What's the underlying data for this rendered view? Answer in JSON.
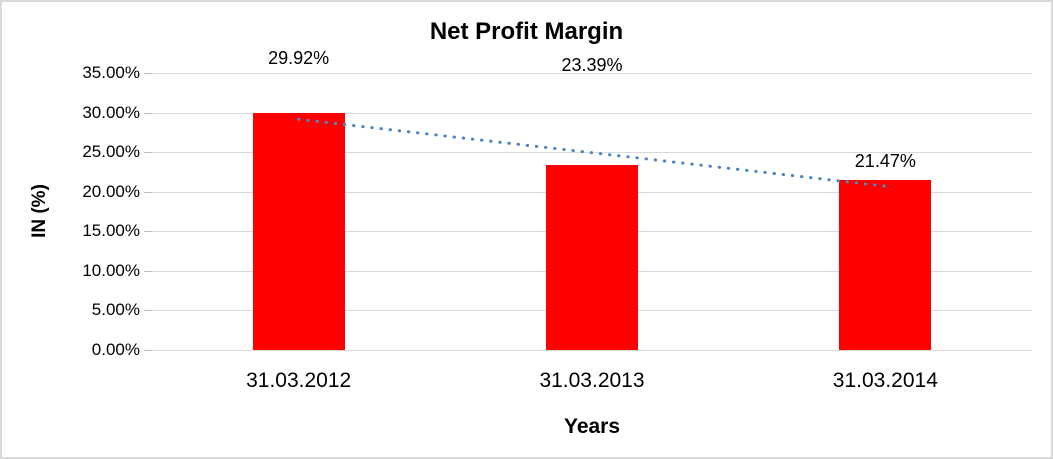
{
  "chart_data": {
    "type": "bar",
    "title": "Net Profit Margin",
    "xlabel": "Years",
    "ylabel": "IN (%)",
    "categories": [
      "31.03.2012",
      "31.03.2013",
      "31.03.2014"
    ],
    "values": [
      29.92,
      23.39,
      21.47
    ],
    "data_labels": [
      "29.92%",
      "23.39%",
      "21.47%"
    ],
    "y_ticks": [
      "35.00%",
      "30.00%",
      "25.00%",
      "20.00%",
      "15.00%",
      "10.00%",
      "5.00%",
      "0.00%"
    ],
    "ylim": [
      0,
      35
    ],
    "y_tick_step": 5,
    "grid": true,
    "legend": "none",
    "bar_color": "#ff0000",
    "trendline": {
      "type": "linear",
      "style": "dotted",
      "color": "#4f86c0"
    },
    "gridline_color": "#d9d9d9",
    "tick_color": "#bfbfbf",
    "frame_border_color": "#d9d9d9",
    "left_edge_color": "#000000"
  }
}
